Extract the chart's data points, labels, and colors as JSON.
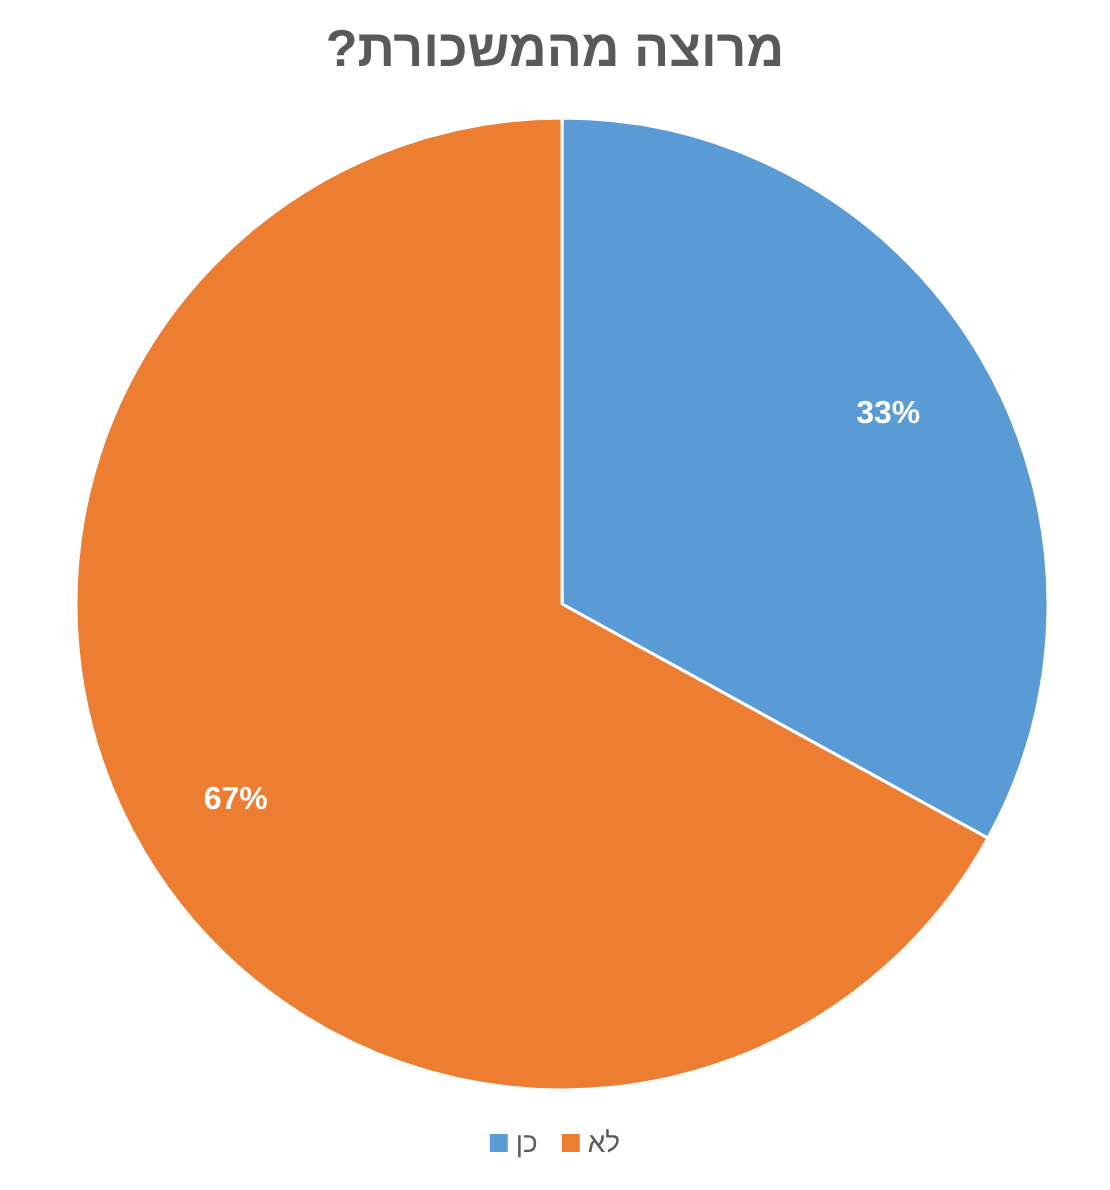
{
  "chart_data": {
    "type": "pie",
    "title": "מרוצה מהמשכורת?",
    "categories": [
      "כן",
      "לא"
    ],
    "values": [
      33,
      67
    ],
    "colors": [
      "#5b9bd5",
      "#ed7d31"
    ],
    "value_labels": [
      "33%",
      "67%"
    ],
    "legend": "bottom"
  }
}
